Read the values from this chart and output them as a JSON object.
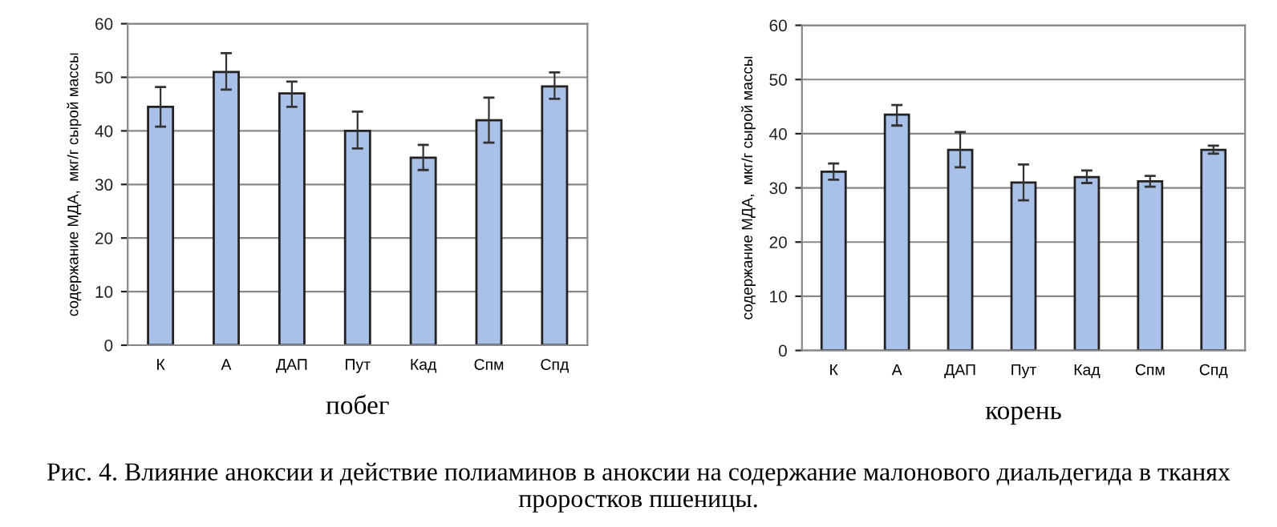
{
  "chart_data": [
    {
      "type": "bar",
      "xlabel": "побег",
      "ylabel": "содержание МДА,  мкг/г сырой массы",
      "categories": [
        "К",
        "А",
        "ДАП",
        "Пут",
        "Кад",
        "Спм",
        "Спд"
      ],
      "values": [
        44.5,
        51,
        47,
        40,
        35,
        42,
        48.3
      ],
      "errors": [
        [
          40.8,
          48.2
        ],
        [
          47.7,
          54.5
        ],
        [
          44.5,
          49.2
        ],
        [
          36.7,
          43.6
        ],
        [
          32.7,
          37.4
        ],
        [
          37.8,
          46.2
        ],
        [
          46,
          50.9
        ]
      ],
      "color": "#a9c0e8",
      "ylim": [
        0,
        60
      ],
      "yticks": [
        0,
        10,
        20,
        30,
        40,
        50,
        60
      ],
      "grid": "y"
    },
    {
      "type": "bar",
      "xlabel": "корень",
      "ylabel": "содержание МДА,  мкг/г сырой массы",
      "categories": [
        "К",
        "А",
        "ДАП",
        "Пут",
        "Кад",
        "Спм",
        "Спд"
      ],
      "values": [
        33,
        43.5,
        37,
        31,
        32,
        31.2,
        37
      ],
      "errors": [
        [
          31.5,
          34.5
        ],
        [
          41.5,
          45.3
        ],
        [
          33.8,
          40.3
        ],
        [
          27.7,
          34.3
        ],
        [
          30.9,
          33.2
        ],
        [
          30.2,
          32.2
        ],
        [
          36.3,
          37.8
        ]
      ],
      "color": "#a9c0e8",
      "ylim": [
        0,
        60
      ],
      "yticks": [
        0,
        10,
        20,
        30,
        40,
        50,
        60
      ],
      "grid": "y",
      "annotations": [
        "Рис. 4. Влияние аноксии и действие полиаминов в аноксии на содержание малонового диальдегида в тканях проростков пшеницы."
      ]
    }
  ]
}
